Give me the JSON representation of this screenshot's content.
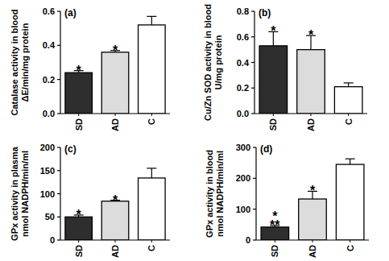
{
  "chart_data": [
    {
      "type": "bar",
      "label": "(a)",
      "ylabel": [
        "Catalase activity in blood",
        "ΔE/min/mg protein"
      ],
      "categories": [
        "SD",
        "AD",
        "C"
      ],
      "values": [
        0.24,
        0.36,
        0.52
      ],
      "errors": [
        0.012,
        0.01,
        0.05
      ],
      "colors": [
        "#2e2e2e",
        "#dcdcdc",
        "#ffffff"
      ],
      "annotations": [
        [
          "*"
        ],
        [
          "*"
        ],
        null
      ],
      "ylim": [
        0,
        0.6
      ],
      "yticks": [
        {
          "value": 0,
          "label": "0.0"
        },
        0.2,
        0.4,
        0.6
      ]
    },
    {
      "type": "bar",
      "label": "(b)",
      "ylabel": [
        "Cu/Zn SOD activity in blood",
        "U/mg protein"
      ],
      "categories": [
        "SD",
        "AD",
        "C"
      ],
      "values": [
        0.53,
        0.5,
        0.21
      ],
      "errors": [
        0.11,
        0.11,
        0.03
      ],
      "colors": [
        "#2e2e2e",
        "#dcdcdc",
        "#ffffff"
      ],
      "annotations": [
        [
          "*"
        ],
        [
          "*"
        ],
        null
      ],
      "ylim": [
        0,
        0.8
      ],
      "yticks": [
        {
          "value": 0,
          "label": "0.0"
        },
        0.2,
        0.4,
        0.6,
        0.8
      ]
    },
    {
      "type": "bar",
      "label": "(c)",
      "ylabel": [
        "GPx activity in plasma",
        "nmol NADPH/min/ml"
      ],
      "categories": [
        "SD",
        "AD",
        "C"
      ],
      "values": [
        50,
        84,
        134
      ],
      "errors": [
        4,
        2,
        21
      ],
      "colors": [
        "#2e2e2e",
        "#dcdcdc",
        "#ffffff"
      ],
      "annotations": [
        [
          "*"
        ],
        [
          "*"
        ],
        null
      ],
      "ylim": [
        0,
        200
      ],
      "yticks": [
        0,
        50,
        100,
        150,
        200
      ]
    },
    {
      "type": "bar",
      "label": "(d)",
      "ylabel": [
        "GPx activity in blood",
        "nmol NADPH/min/ml"
      ],
      "categories": [
        "SD",
        "AD",
        "C"
      ],
      "values": [
        42,
        133,
        245
      ],
      "errors": [
        5,
        25,
        18
      ],
      "colors": [
        "#2e2e2e",
        "#dcdcdc",
        "#ffffff"
      ],
      "annotations": [
        [
          "*",
          "**"
        ],
        [
          "*"
        ],
        null
      ],
      "ylim": [
        0,
        300
      ],
      "yticks": [
        0,
        100,
        200,
        300
      ]
    }
  ]
}
